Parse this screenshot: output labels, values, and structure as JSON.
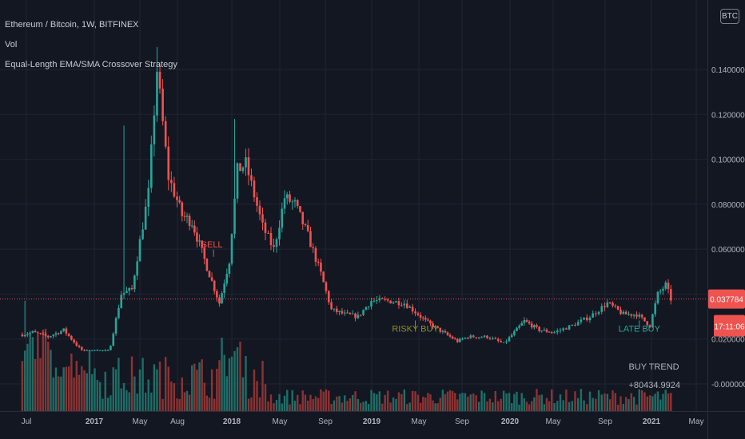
{
  "header": {
    "symbol_line": "Ethereum / Bitcoin, 1W, BITFINEX",
    "indicator_vol": "Vol",
    "indicator_strategy": "Equal-Length EMA/SMA Crossover Strategy",
    "currency_button": "BTC"
  },
  "colors": {
    "background": "#131722",
    "grid": "#1f2433",
    "up": "#26a69a",
    "down": "#ef5350",
    "vol_up": "#1e6e67",
    "vol_down": "#8c3333",
    "signal_sell": "#ef5350",
    "signal_risky": "#8f8f26",
    "signal_late": "#26a69a",
    "axis_text": "#b2b5be"
  },
  "chart_data": {
    "type": "candlestick",
    "title": "Ethereum / Bitcoin, 1W, BITFINEX",
    "x_tick_labels": [
      "Jul",
      "2017",
      "May",
      "Aug",
      "2018",
      "May",
      "Sep",
      "2019",
      "May",
      "Sep",
      "2020",
      "May",
      "Sep",
      "2021",
      "May"
    ],
    "y_tick_labels": [
      "0.140000",
      "0.120000",
      "0.100000",
      "0.080000",
      "0.060000",
      "0.020000",
      "-0.000000"
    ],
    "ylim": [
      -0.006,
      0.155
    ],
    "y_scale_note": "price axis",
    "last_price_label": "0.037784",
    "last_price": 0.037784,
    "countdown_label": "17:11:06",
    "price_path": [
      [
        "2016-06-20",
        0.022
      ],
      [
        "2016-07-18",
        0.023
      ],
      [
        "2016-08-29",
        0.021
      ],
      [
        "2016-10-10",
        0.024
      ],
      [
        "2016-11-21",
        0.016
      ],
      [
        "2017-01-02",
        0.011
      ],
      [
        "2017-02-06",
        0.012
      ],
      [
        "2017-03-13",
        0.04
      ],
      [
        "2017-04-10",
        0.042
      ],
      [
        "2017-05-22",
        0.085
      ],
      [
        "2017-06-12",
        0.14
      ],
      [
        "2017-07-10",
        0.092
      ],
      [
        "2017-08-14",
        0.075
      ],
      [
        "2017-09-11",
        0.072
      ],
      [
        "2017-10-23",
        0.052
      ],
      [
        "2017-11-27",
        0.036
      ],
      [
        "2017-12-25",
        0.055
      ],
      [
        "2018-01-15",
        0.095
      ],
      [
        "2018-02-05",
        0.098
      ],
      [
        "2018-03-19",
        0.07
      ],
      [
        "2018-04-16",
        0.06
      ],
      [
        "2018-05-14",
        0.083
      ],
      [
        "2018-06-11",
        0.08
      ],
      [
        "2018-07-16",
        0.066
      ],
      [
        "2018-08-20",
        0.049
      ],
      [
        "2018-09-17",
        0.033
      ],
      [
        "2018-10-22",
        0.031
      ],
      [
        "2018-11-26",
        0.03
      ],
      [
        "2018-12-31",
        0.037
      ],
      [
        "2019-02-11",
        0.037
      ],
      [
        "2019-03-25",
        0.036
      ],
      [
        "2019-05-20",
        0.028
      ],
      [
        "2019-07-08",
        0.023
      ],
      [
        "2019-08-19",
        0.019
      ],
      [
        "2019-09-16",
        0.021
      ],
      [
        "2019-11-04",
        0.021
      ],
      [
        "2019-12-16",
        0.018
      ],
      [
        "2020-02-10",
        0.028
      ],
      [
        "2020-03-23",
        0.024
      ],
      [
        "2020-05-04",
        0.023
      ],
      [
        "2020-06-15",
        0.026
      ],
      [
        "2020-07-27",
        0.03
      ],
      [
        "2020-09-07",
        0.036
      ],
      [
        "2020-10-19",
        0.031
      ],
      [
        "2020-11-23",
        0.031
      ],
      [
        "2020-12-28",
        0.026
      ],
      [
        "2021-01-18",
        0.04
      ],
      [
        "2021-02-08",
        0.044
      ],
      [
        "2021-02-22",
        0.037784
      ]
    ],
    "spikes": [
      {
        "date": "2017-03-20",
        "high": 0.115
      },
      {
        "date": "2017-06-12",
        "high": 0.15
      },
      {
        "date": "2018-01-08",
        "high": 0.118
      },
      {
        "date": "2016-06-27",
        "high": 0.037
      }
    ],
    "signals": [
      {
        "label": "SELL",
        "date": "2017-11-06",
        "price": 0.058
      },
      {
        "label": "RISKY BUY",
        "date": "2019-04-22",
        "price": 0.024
      },
      {
        "label": "LATE BUY",
        "date": "2020-11-30",
        "price": 0.024
      }
    ],
    "strategy_summary": {
      "label": "BUY TREND",
      "value": "+80434.9924",
      "date": "2020-12-14"
    }
  }
}
